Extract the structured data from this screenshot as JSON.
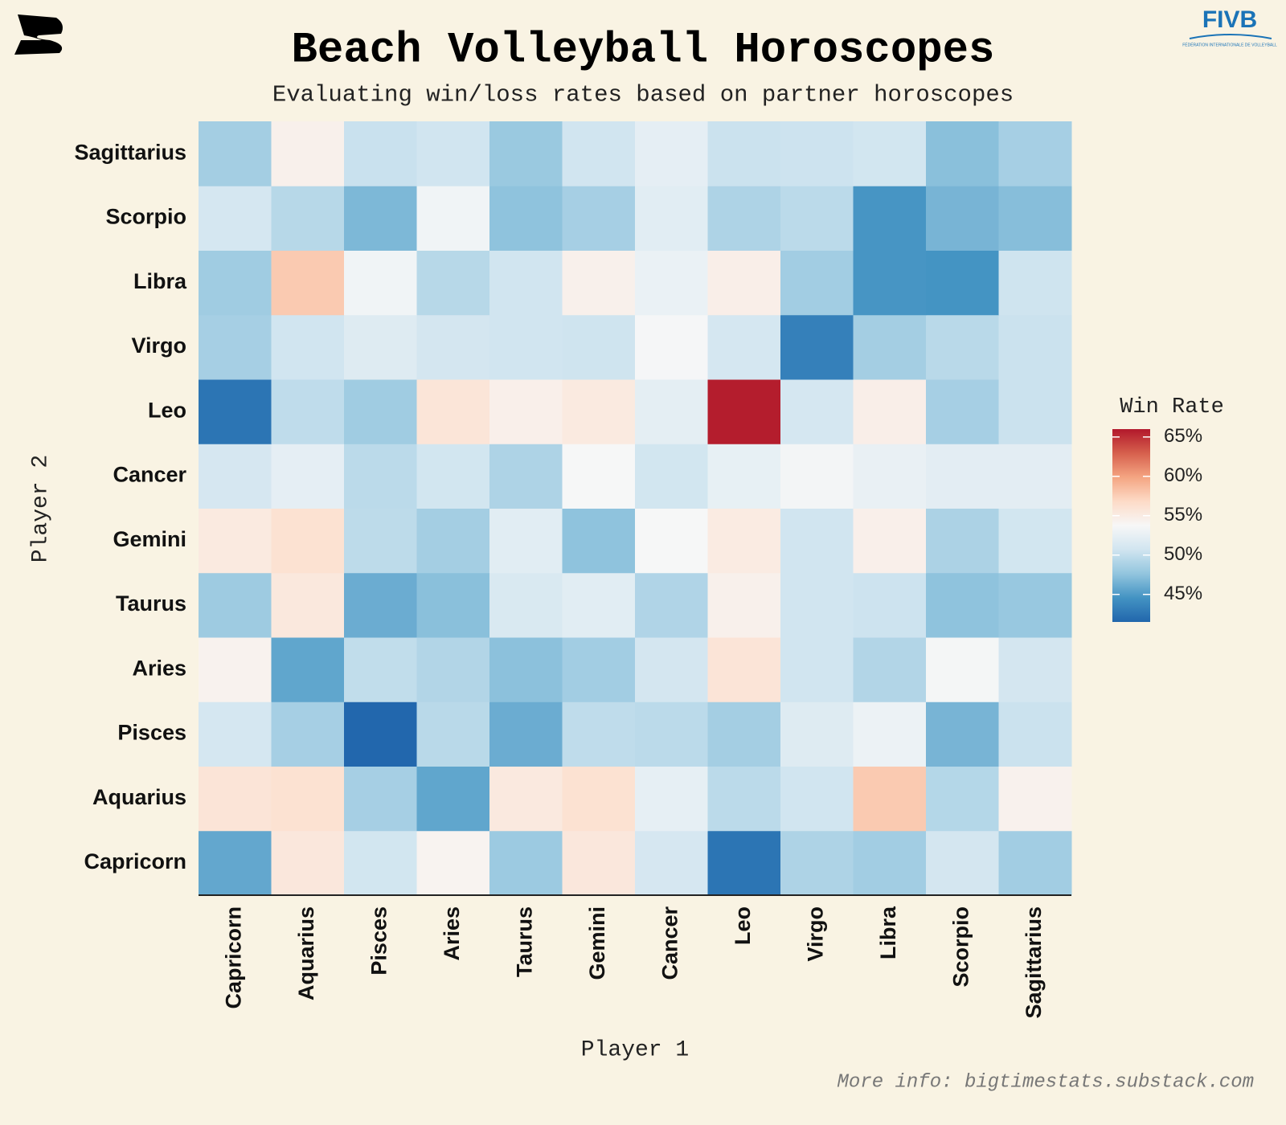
{
  "chart_data": {
    "type": "heatmap",
    "title": "Beach Volleyball Horoscopes",
    "subtitle": "Evaluating win/loss rates based on partner horoscopes",
    "xlabel": "Player 1",
    "ylabel": "Player 2",
    "footer": "More info: bigtimestats.substack.com",
    "logo_text": "FIVB",
    "logo_subtext": "FÉDÉRATION INTERNATIONALE DE VOLLEYBALL",
    "x_categories": [
      "Capricorn",
      "Aquarius",
      "Pisces",
      "Aries",
      "Taurus",
      "Gemini",
      "Cancer",
      "Leo",
      "Virgo",
      "Libra",
      "Scorpio",
      "Sagittarius"
    ],
    "y_categories": [
      "Capricorn",
      "Aquarius",
      "Pisces",
      "Aries",
      "Taurus",
      "Gemini",
      "Cancer",
      "Leo",
      "Virgo",
      "Libra",
      "Scorpio",
      "Sagittarius"
    ],
    "values": [
      [
        45.8,
        55.5,
        50.8,
        54.2,
        48.1,
        55.5,
        51.1,
        42.5,
        49.0,
        48.4,
        50.9,
        48.4
      ],
      [
        55.8,
        56.1,
        48.6,
        45.7,
        55.3,
        56.1,
        52.4,
        49.6,
        50.7,
        57.8,
        49.3,
        54.4
      ],
      [
        51.0,
        48.6,
        41.6,
        49.5,
        46.1,
        49.8,
        49.6,
        48.5,
        51.7,
        52.9,
        46.6,
        50.4
      ],
      [
        54.3,
        45.7,
        49.9,
        49.2,
        47.4,
        48.4,
        50.9,
        55.8,
        50.7,
        49.2,
        53.5,
        50.9
      ],
      [
        48.2,
        55.4,
        46.1,
        47.3,
        51.3,
        52.0,
        49.1,
        54.5,
        50.7,
        50.5,
        47.5,
        47.9
      ],
      [
        55.2,
        56.1,
        49.7,
        48.5,
        52.0,
        47.5,
        53.7,
        55.1,
        50.7,
        54.6,
        48.9,
        50.8
      ],
      [
        51.1,
        52.3,
        49.6,
        50.8,
        49.0,
        53.7,
        50.8,
        52.5,
        53.4,
        52.6,
        52.1,
        52.1
      ],
      [
        42.5,
        49.8,
        48.3,
        55.7,
        54.6,
        55.2,
        52.2,
        65.8,
        51.0,
        54.7,
        48.6,
        50.4
      ],
      [
        48.6,
        50.7,
        51.7,
        50.9,
        50.7,
        50.6,
        53.6,
        51.0,
        43.3,
        48.5,
        49.5,
        50.4
      ],
      [
        48.3,
        57.8,
        53.2,
        49.4,
        50.7,
        54.5,
        52.7,
        54.7,
        48.4,
        44.7,
        44.6,
        50.6
      ],
      [
        51.0,
        49.4,
        46.8,
        53.2,
        47.5,
        48.6,
        52.0,
        49.0,
        49.6,
        44.7,
        46.6,
        47.2
      ],
      [
        48.5,
        54.5,
        50.3,
        50.7,
        48.0,
        50.7,
        52.3,
        50.4,
        50.5,
        50.8,
        47.3,
        48.6
      ]
    ],
    "colorbar_title": "Win Rate",
    "zlim": [
      41.5,
      66
    ],
    "zticks": [
      {
        "value": 45,
        "label": "45%"
      },
      {
        "value": 50,
        "label": "50%"
      },
      {
        "value": 55,
        "label": "55%"
      },
      {
        "value": 60,
        "label": "60%"
      },
      {
        "value": 65,
        "label": "65%"
      }
    ],
    "colorscale": [
      "#2166ac",
      "#4393c3",
      "#92c5de",
      "#d1e5f0",
      "#f7f7f7",
      "#fddbc7",
      "#f4a582",
      "#d6604d",
      "#b2182b"
    ]
  }
}
